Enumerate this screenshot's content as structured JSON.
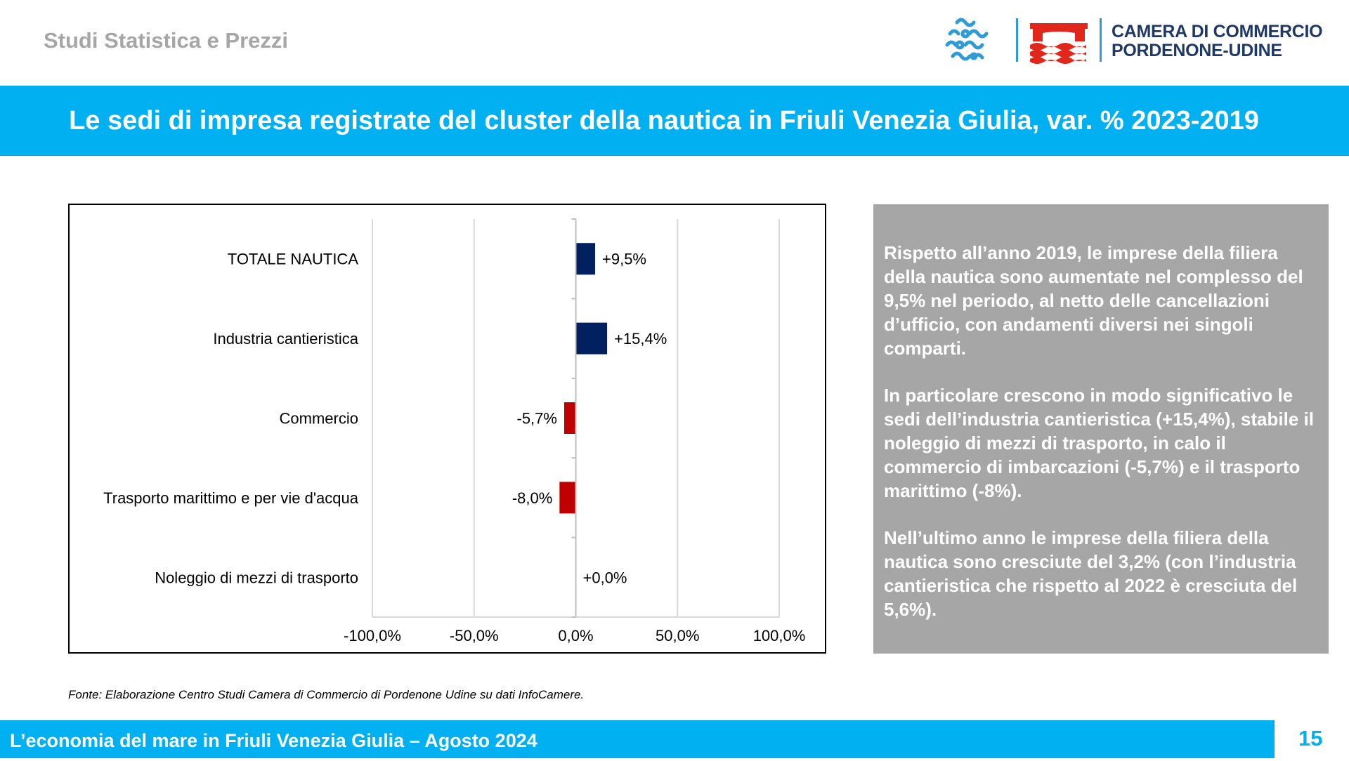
{
  "header": {
    "department": "Studi Statistica e Prezzi",
    "logo_line1": "CAMERA DI COMMERCIO",
    "logo_line2": "PORDENONE-UDINE",
    "logo_colors": {
      "chamber_blue": "#2e9bd6",
      "wave_red": "#e1261c",
      "text": "#1f3864"
    }
  },
  "title": "Le sedi di impresa registrate del cluster della nautica in Friuli Venezia Giulia, var. % 2023-2019",
  "chart_data": {
    "type": "bar",
    "orientation": "horizontal",
    "categories": [
      "TOTALE NAUTICA",
      "Industria cantieristica",
      "Commercio",
      "Trasporto marittimo e per vie d'acqua",
      "Noleggio di mezzi di trasporto"
    ],
    "values": [
      9.5,
      15.4,
      -5.7,
      -8.0,
      0.0
    ],
    "data_labels": [
      "+9,5%",
      "+15,4%",
      "-5,7%",
      "-8,0%",
      "+0,0%"
    ],
    "xlim": [
      -100,
      100
    ],
    "xticks": [
      -100,
      -50,
      0,
      50,
      100
    ],
    "xtick_labels": [
      "-100,0%",
      "-50,0%",
      "0,0%",
      "50,0%",
      "100,0%"
    ],
    "grid": "vertical",
    "colors": {
      "positive": "#002060",
      "negative": "#c00000"
    }
  },
  "commentary": [
    "Rispetto all’anno 2019, le imprese della filiera della nautica sono aumentate nel complesso del 9,5% nel periodo, al netto delle cancellazioni d’ufficio, con andamenti diversi nei singoli comparti.",
    "In particolare crescono in modo significativo le sedi dell’industria cantieristica (+15,4%), stabile il noleggio di mezzi di trasporto, in calo il commercio di imbarcazioni (-5,7%) e il trasporto marittimo (-8%).",
    "Nell’ultimo anno le imprese della filiera della nautica sono cresciute del 3,2% (con l’industria cantieristica che rispetto al 2022 è cresciuta del 5,6%)."
  ],
  "source": "Fonte: Elaborazione Centro Studi Camera di Commercio di Pordenone Udine su dati InfoCamere.",
  "footer": {
    "text": "L’economia del mare in Friuli Venezia Giulia – Agosto 2024",
    "page_number": "15"
  }
}
